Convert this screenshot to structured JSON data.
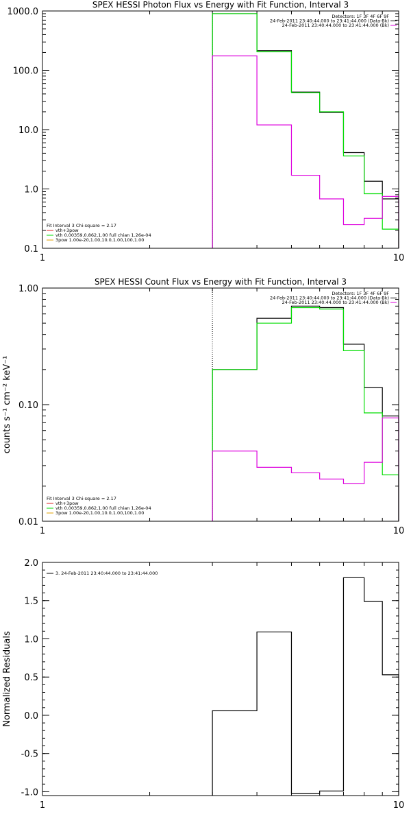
{
  "chart_data": [
    {
      "type": "line",
      "title": "SPEX HESSI Photon Flux vs Energy with Fit Function, Interval 3",
      "ylabel": "",
      "xlabel": "",
      "xscale": "log",
      "yscale": "log",
      "xlim": [
        1,
        10
      ],
      "ylim": [
        0.1,
        1000
      ],
      "xticks": [
        {
          "v": 1,
          "label": "1"
        },
        {
          "v": 10,
          "label": "10"
        }
      ],
      "yticks": [
        {
          "v": 0.1,
          "label": "0.1"
        },
        {
          "v": 1,
          "label": "1.0"
        },
        {
          "v": 10,
          "label": "10.0"
        },
        {
          "v": 100,
          "label": "100.0"
        },
        {
          "v": 1000,
          "label": "1000.0"
        }
      ],
      "vline_x": 3,
      "edges": [
        3,
        4,
        5,
        6,
        7,
        8,
        9,
        10
      ],
      "series": [
        {
          "name": "",
          "color": "#000000",
          "values": [
            900,
            215,
            43,
            19.5,
            4.1,
            1.35,
            0.68
          ]
        },
        {
          "name": "",
          "color": "#00dd00",
          "values": [
            900,
            205,
            42,
            20,
            3.6,
            0.83,
            0.21
          ]
        },
        {
          "name": "",
          "color": "#dd00dd",
          "values": [
            175,
            12,
            1.7,
            0.68,
            0.25,
            0.32,
            0.75
          ]
        }
      ],
      "legend_right": [
        "Detectors: 1F 3F 4F 6F 9F",
        "24-Feb-2011 23:40:44.000 to 23:41:44.000 (Data-Bk)",
        "24-Feb-2011 23:40:44.000 to 23:41:44.000 (Bk)"
      ],
      "legend_right_colors": [
        "",
        "#000000",
        "#dd00dd"
      ],
      "legend_left": [
        "Fit Interval 3   Chi-square = 2.17",
        "vth+3pow",
        "vth 0.00359,0.862,1.00  full chian 1.26e-04",
        "3pow 1.00e-20,1.00,10.0,1.00,100,1.00"
      ],
      "legend_left_colors": [
        "",
        "#dd2222",
        "#00dd00",
        "#e0a000"
      ]
    },
    {
      "type": "line",
      "title": "SPEX HESSI Count Flux vs Energy with Fit Function, Interval 3",
      "ylabel": "counts s⁻¹ cm⁻² keV⁻¹",
      "xlabel": "",
      "xscale": "log",
      "yscale": "log",
      "xlim": [
        1,
        10
      ],
      "ylim": [
        0.01,
        1
      ],
      "xticks": [
        {
          "v": 1,
          "label": "1"
        },
        {
          "v": 10,
          "label": "10"
        }
      ],
      "yticks": [
        {
          "v": 0.01,
          "label": "0.01"
        },
        {
          "v": 0.1,
          "label": "0.10"
        },
        {
          "v": 1,
          "label": "1.00"
        }
      ],
      "vline_x": 3,
      "edges": [
        3,
        4,
        5,
        6,
        7,
        8,
        9,
        10
      ],
      "series": [
        {
          "name": "",
          "color": "#000000",
          "values": [
            0.2,
            0.55,
            0.7,
            0.68,
            0.33,
            0.14,
            0.08
          ]
        },
        {
          "name": "",
          "color": "#00dd00",
          "values": [
            0.2,
            0.5,
            0.68,
            0.66,
            0.29,
            0.085,
            0.025
          ]
        },
        {
          "name": "",
          "color": "#dd00dd",
          "values": [
            0.04,
            0.029,
            0.026,
            0.023,
            0.021,
            0.032,
            0.077
          ]
        }
      ],
      "legend_right": [
        "Detectors: 1F 3F 4F 6F 9F",
        "24-Feb-2011 23:40:44.000 to 23:41:44.000 (Data-Bk)",
        "24-Feb-2011 23:40:44.000 to 23:41:44.000 (Bk)"
      ],
      "legend_right_colors": [
        "",
        "#000000",
        "#dd00dd"
      ],
      "legend_left": [
        "Fit Interval 3   Chi-square = 2.17",
        "vth+3pow",
        "vth 0.00359,0.862,1.00  full chian 1.26e-04",
        "3pow 1.00e-20,1.00,10.0,1.00,100,1.00"
      ],
      "legend_left_colors": [
        "",
        "#dd2222",
        "#00dd00",
        "#e0a000"
      ]
    },
    {
      "type": "line",
      "title": "",
      "ylabel": "Normalized Residuals",
      "xlabel": "",
      "xscale": "log",
      "yscale": "linear",
      "xlim": [
        1,
        10
      ],
      "ylim": [
        -1.05,
        2.0
      ],
      "xticks": [
        {
          "v": 1,
          "label": "1"
        },
        {
          "v": 10,
          "label": "10"
        }
      ],
      "yticks": [
        {
          "v": -1,
          "label": "-1.0"
        },
        {
          "v": -0.5,
          "label": "-0.5"
        },
        {
          "v": 0,
          "label": "0.0"
        },
        {
          "v": 0.5,
          "label": "0.5"
        },
        {
          "v": 1,
          "label": "1.0"
        },
        {
          "v": 1.5,
          "label": "1.5"
        },
        {
          "v": 2,
          "label": "2.0"
        }
      ],
      "edges": [
        3,
        4,
        5,
        6,
        7,
        8,
        9,
        10
      ],
      "series": [
        {
          "name": "",
          "color": "#000000",
          "values": [
            0.06,
            1.09,
            -1.02,
            -0.99,
            1.8,
            1.49,
            0.53
          ]
        }
      ],
      "legend_left": [
        "3. 24-Feb-2011 23:40:44.000 to 23:41:44.000"
      ],
      "legend_left_colors": [
        "#000000"
      ]
    }
  ]
}
